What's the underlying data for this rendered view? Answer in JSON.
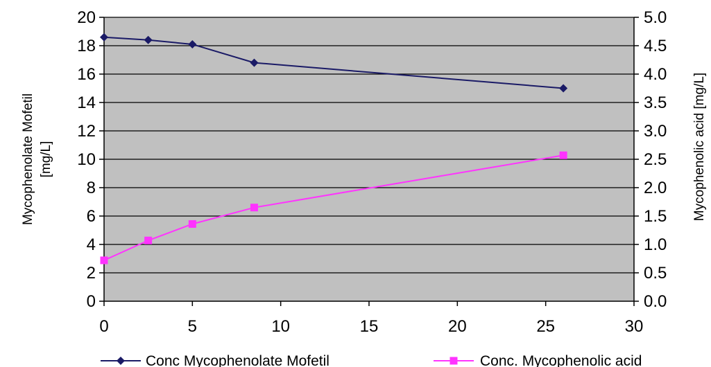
{
  "chart_data": {
    "type": "line",
    "x_axis": {
      "min": 0,
      "max": 30,
      "ticks": [
        0,
        5,
        10,
        15,
        20,
        25,
        30
      ]
    },
    "y_left": {
      "label_line1": "Mycophenolate Mofetil",
      "label_line2": "[mg/L]",
      "min": 0,
      "max": 20,
      "ticks": [
        "0",
        "2",
        "4",
        "6",
        "8",
        "10",
        "12",
        "14",
        "16",
        "18",
        "20"
      ]
    },
    "y_right": {
      "label": "Mycophenolic acid [mg/L]",
      "min": 0,
      "max": 5,
      "ticks": [
        "0.0",
        "0.5",
        "1.0",
        "1.5",
        "2.0",
        "2.5",
        "3.0",
        "3.5",
        "4.0",
        "4.5",
        "5.0"
      ]
    },
    "grid": true,
    "legend_position": "bottom",
    "series": [
      {
        "name": "Conc Mycophenolate Mofetil",
        "axis": "left",
        "color": "#1a1a66",
        "marker": "diamond",
        "x": [
          0,
          2.5,
          5,
          8.5,
          26
        ],
        "y": [
          18.6,
          18.4,
          18.1,
          16.8,
          15.0
        ]
      },
      {
        "name": "Conc. Mycophenolic acid",
        "axis": "right",
        "color": "#ff33ff",
        "marker": "square",
        "x": [
          0,
          2.5,
          5,
          8.5,
          26
        ],
        "y": [
          0.72,
          1.07,
          1.36,
          1.65,
          2.57
        ]
      }
    ],
    "colors": {
      "plot_background": "#c0c0c0",
      "gridline": "#000000"
    }
  }
}
